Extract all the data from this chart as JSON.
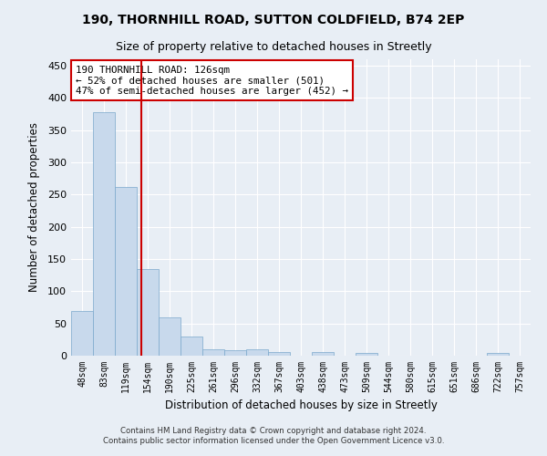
{
  "title1": "190, THORNHILL ROAD, SUTTON COLDFIELD, B74 2EP",
  "title2": "Size of property relative to detached houses in Streetly",
  "xlabel": "Distribution of detached houses by size in Streetly",
  "ylabel": "Number of detached properties",
  "categories": [
    "48sqm",
    "83sqm",
    "119sqm",
    "154sqm",
    "190sqm",
    "225sqm",
    "261sqm",
    "296sqm",
    "332sqm",
    "367sqm",
    "403sqm",
    "438sqm",
    "473sqm",
    "509sqm",
    "544sqm",
    "580sqm",
    "615sqm",
    "651sqm",
    "686sqm",
    "722sqm",
    "757sqm"
  ],
  "values": [
    70,
    378,
    262,
    135,
    59,
    30,
    10,
    8,
    10,
    6,
    0,
    5,
    0,
    4,
    0,
    0,
    0,
    0,
    0,
    4,
    0
  ],
  "bar_color": "#c8d9ec",
  "bar_edge_color": "#7aa8cc",
  "background_color": "#e8eef5",
  "grid_color": "#ffffff",
  "annotation_text": "190 THORNHILL ROAD: 126sqm\n← 52% of detached houses are smaller (501)\n47% of semi-detached houses are larger (452) →",
  "annotation_box_color": "#ffffff",
  "annotation_box_edge_color": "#cc0000",
  "ylim": [
    0,
    460
  ],
  "yticks": [
    0,
    50,
    100,
    150,
    200,
    250,
    300,
    350,
    400,
    450
  ],
  "footer1": "Contains HM Land Registry data © Crown copyright and database right 2024.",
  "footer2": "Contains public sector information licensed under the Open Government Licence v3.0."
}
